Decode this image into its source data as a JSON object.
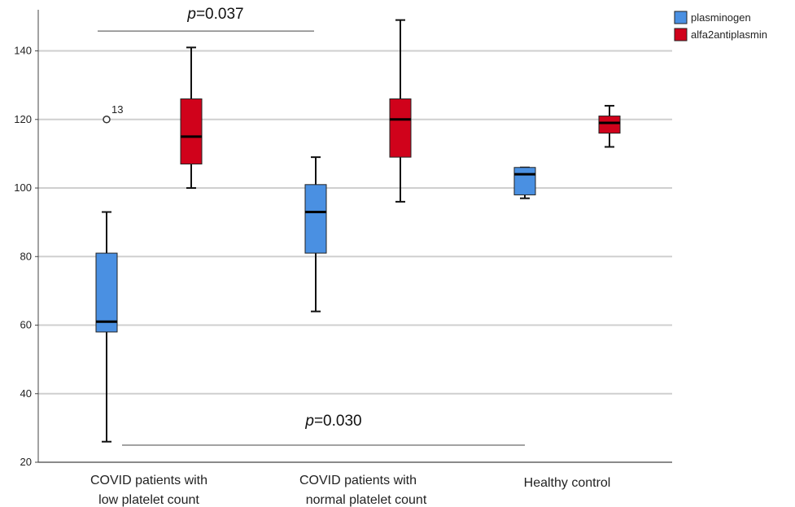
{
  "chart_data": {
    "type": "boxplot",
    "ylim": [
      20,
      152
    ],
    "yticks": [
      "20",
      "40",
      "60",
      "80",
      "100",
      "120",
      "140"
    ],
    "grid": true,
    "categories": [
      {
        "line1": "COVID patients with",
        "line2": "low platelet count"
      },
      {
        "line1": "COVID patients with",
        "line2": "normal platelet count"
      },
      {
        "line1": "Healthy control",
        "line2": ""
      }
    ],
    "series": [
      {
        "name": "plasminogen",
        "color": "#4a90e2",
        "boxes": [
          {
            "min": 26,
            "q1": 58,
            "median": 61,
            "q3": 81,
            "max": 93
          },
          {
            "min": 64,
            "q1": 81,
            "median": 93,
            "q3": 101,
            "max": 109
          },
          {
            "min": 97,
            "q1": 98,
            "median": 104,
            "q3": 106,
            "max": 106
          }
        ],
        "outliers": [
          {
            "category": 0,
            "value": 120,
            "label": "13"
          }
        ]
      },
      {
        "name": "alfa2antiplasmin",
        "color": "#d0021b",
        "boxes": [
          {
            "min": 100,
            "q1": 107,
            "median": 115,
            "q3": 126,
            "max": 141
          },
          {
            "min": 96,
            "q1": 109,
            "median": 120,
            "q3": 126,
            "max": 149
          },
          {
            "min": 112,
            "q1": 116,
            "median": 119,
            "q3": 121,
            "max": 124
          }
        ],
        "outliers": []
      }
    ],
    "legend": {
      "placement": "top-right"
    },
    "annotations": [
      {
        "p_label": "p",
        "value_text": "=0.037",
        "line_y": 145.8,
        "from": "low-plasminogen",
        "to": "normal-plasminogen"
      },
      {
        "p_label": "p",
        "value_text": "=0.030",
        "line_y": 25,
        "from": "low-plasminogen",
        "to": "control-plasminogen"
      }
    ]
  }
}
